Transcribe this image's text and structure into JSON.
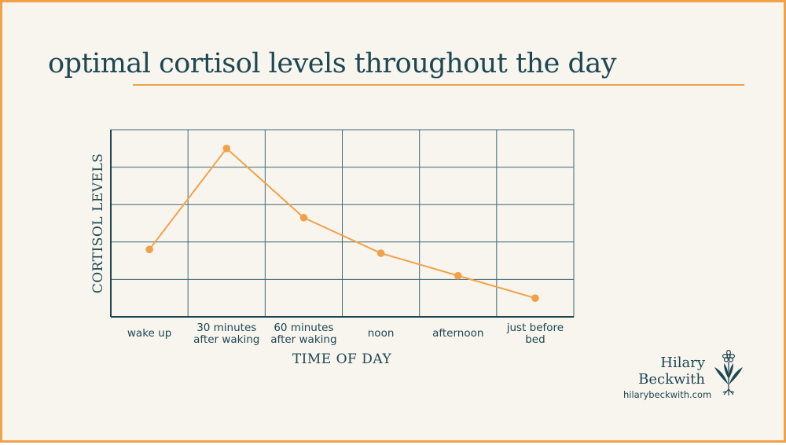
{
  "title": "optimal cortisol levels throughout the day",
  "brand": {
    "name_line1": "Hilary",
    "name_line2": "Beckwith",
    "url": "hilarybeckwith.com",
    "icon": "flower-icon"
  },
  "colors": {
    "background": "#f8f4ee",
    "accent": "#f0a24a",
    "ink": "#1d4751",
    "grid": "#3e6a74"
  },
  "chart_data": {
    "type": "line",
    "title": "optimal cortisol levels throughout the day",
    "xlabel": "TIME OF DAY",
    "ylabel": "CORTISOL LEVELS",
    "categories": [
      [
        "wake up"
      ],
      [
        "30 minutes",
        "after waking"
      ],
      [
        "60 minutes",
        "after waking"
      ],
      [
        "noon"
      ],
      [
        "afternoon"
      ],
      [
        "just before",
        "bed"
      ]
    ],
    "values": [
      1.8,
      4.5,
      2.65,
      1.7,
      1.1,
      0.5
    ],
    "ylim": [
      0,
      5
    ],
    "grid": true,
    "legend": "none"
  }
}
